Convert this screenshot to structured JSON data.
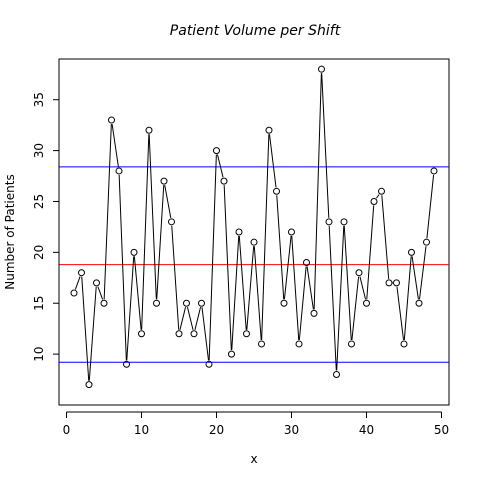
{
  "chart_data": {
    "type": "line",
    "title": "Patient Volume per Shift",
    "xlabel": "x",
    "ylabel": "Number of Patients",
    "xlim": [
      -1,
      51
    ],
    "ylim": [
      5,
      39
    ],
    "x_ticks": [
      0,
      10,
      20,
      30,
      40,
      50
    ],
    "y_ticks": [
      10,
      15,
      20,
      25,
      30,
      35
    ],
    "grid": false,
    "colors": {
      "series": "#000000",
      "center_line": "#ff0000",
      "control_limits": "#0000ff"
    },
    "reference_lines": [
      {
        "y": 28.4,
        "color": "#0000ff"
      },
      {
        "y": 18.8,
        "color": "#ff0000"
      },
      {
        "y": 9.2,
        "color": "#0000ff"
      }
    ],
    "series": [
      {
        "x": [
          1,
          2,
          3,
          4,
          5,
          6,
          7,
          8,
          9,
          10,
          11,
          12,
          13,
          14,
          15,
          16,
          17,
          18,
          19,
          20,
          21,
          22,
          23,
          24,
          25,
          26,
          27,
          28,
          29,
          30,
          31,
          32,
          33,
          34,
          35,
          36,
          37,
          38,
          39,
          40,
          41,
          42,
          43,
          44,
          45,
          46,
          47,
          48,
          49
        ],
        "values": [
          16,
          18,
          7,
          17,
          15,
          33,
          28,
          9,
          20,
          12,
          32,
          15,
          27,
          23,
          12,
          15,
          12,
          15,
          9,
          30,
          27,
          10,
          22,
          12,
          21,
          11,
          32,
          26,
          15,
          22,
          11,
          19,
          14,
          38,
          23,
          8,
          23,
          11,
          18,
          15,
          25,
          26,
          17,
          17,
          11,
          20,
          15,
          21,
          28
        ]
      }
    ]
  }
}
